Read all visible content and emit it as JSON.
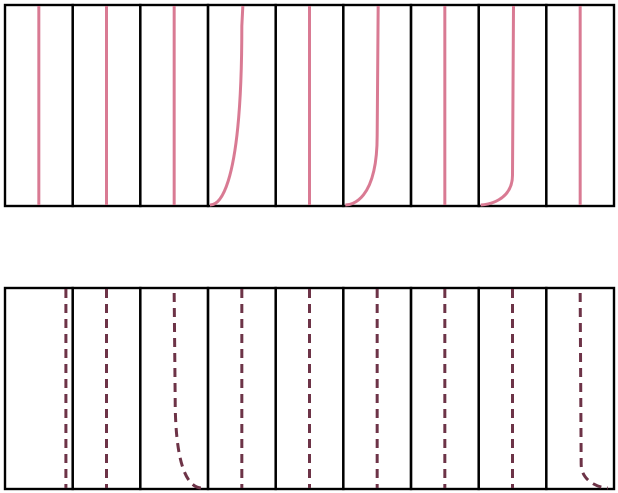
{
  "chart_data": {
    "type": "line",
    "grid": false,
    "legend": "none",
    "rows": [
      {
        "line_style": "solid",
        "color": "#d97a93",
        "panels": [
          {
            "shape": "vertical"
          },
          {
            "shape": "vertical"
          },
          {
            "shape": "vertical"
          },
          {
            "shape": "curve-bottom-left",
            "strength": 0.9
          },
          {
            "shape": "vertical"
          },
          {
            "shape": "curve-bottom-left",
            "strength": 0.35
          },
          {
            "shape": "vertical"
          },
          {
            "shape": "curve-bottom-left",
            "strength": 0.15
          },
          {
            "shape": "vertical"
          }
        ]
      },
      {
        "line_style": "dashed",
        "color": "#6d3347",
        "panels": [
          {
            "shape": "vertical-right"
          },
          {
            "shape": "vertical"
          },
          {
            "shape": "curve-bottom-right",
            "strength": 0.45
          },
          {
            "shape": "vertical"
          },
          {
            "shape": "vertical"
          },
          {
            "shape": "vertical"
          },
          {
            "shape": "vertical"
          },
          {
            "shape": "vertical"
          },
          {
            "shape": "curve-bottom-right",
            "strength": 0.12
          }
        ]
      }
    ]
  }
}
